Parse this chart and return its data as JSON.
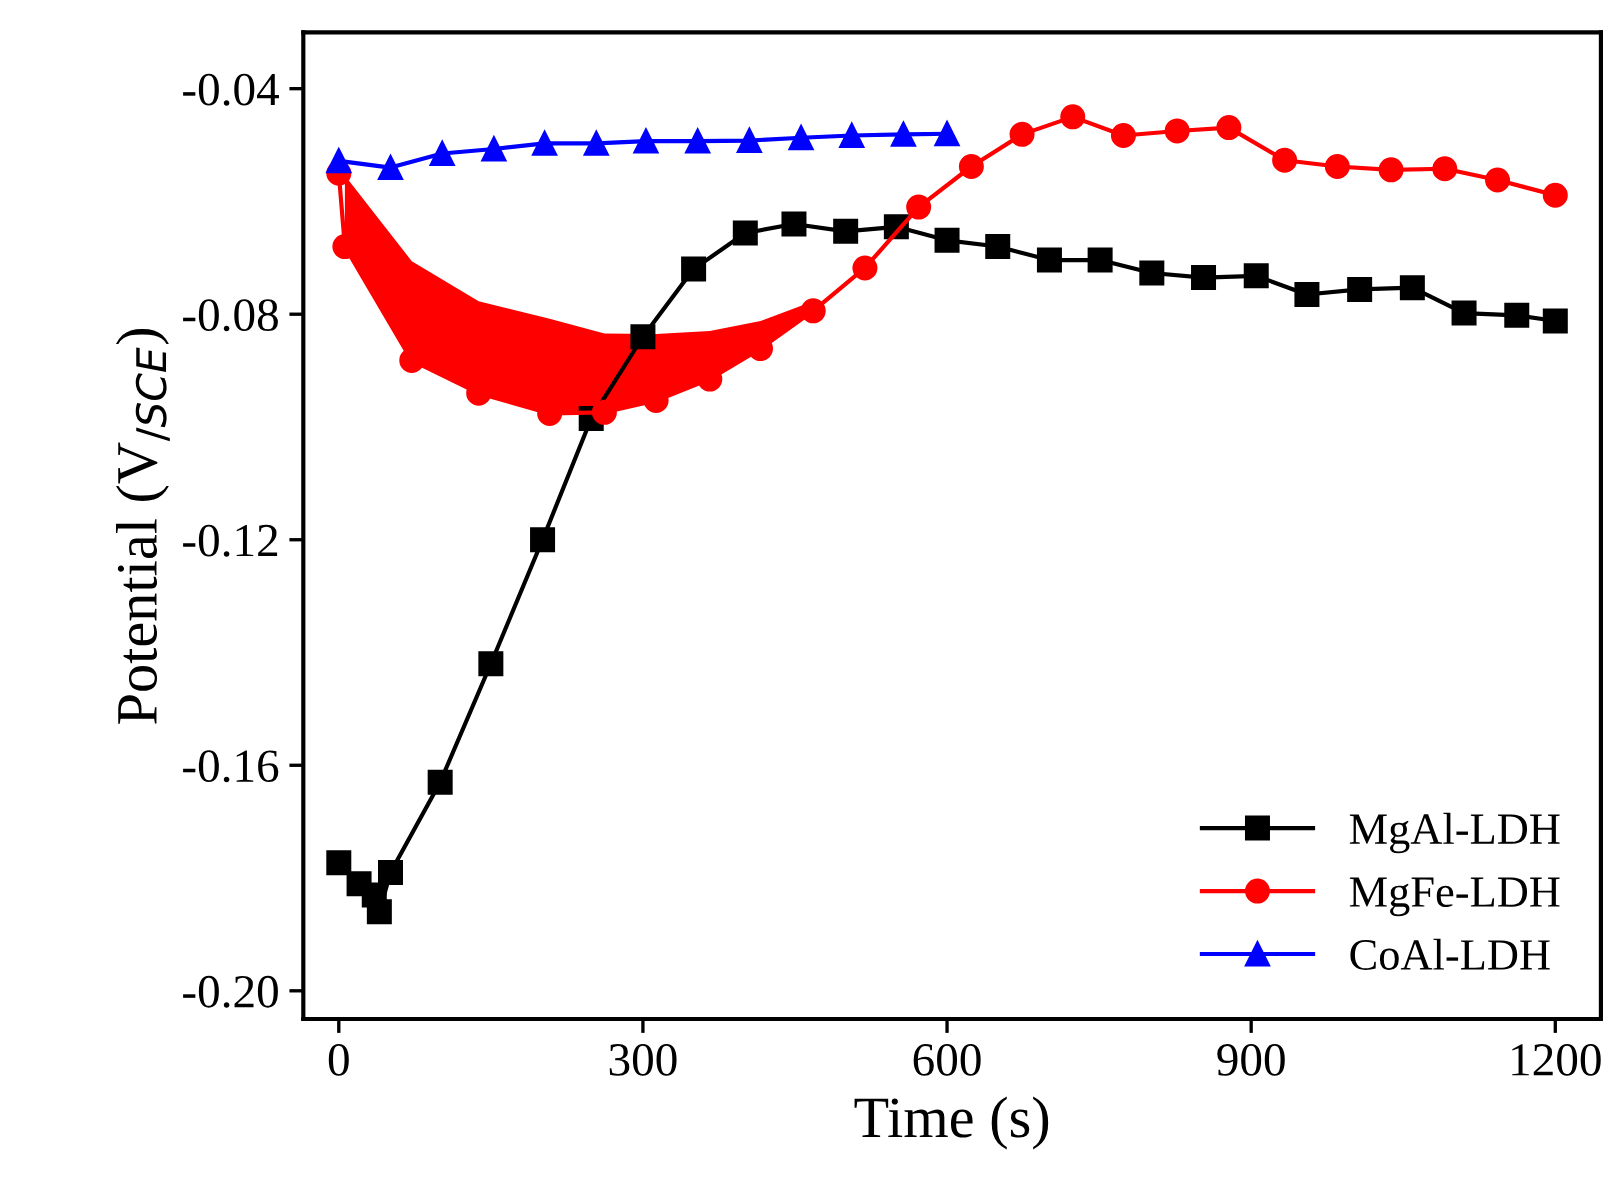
{
  "chart_data": {
    "type": "line",
    "xlabel": "Time (s)",
    "ylabel": "Potential (V$_{/SCE}$)",
    "xlim": [
      -35,
      1245
    ],
    "xticks": [
      0,
      300,
      600,
      900,
      1200
    ],
    "ylim": [
      -0.205,
      -0.03
    ],
    "yticks": [
      {
        "value": -0.2,
        "label": "-0.20"
      },
      {
        "value": -0.16,
        "label": "-0.16"
      },
      {
        "value": -0.12,
        "label": "-0.12"
      },
      {
        "value": -0.08,
        "label": "-0.08"
      },
      {
        "value": -0.04,
        "label": "-0.04"
      }
    ],
    "grid": false,
    "legend": "bottom right",
    "series": [
      {
        "name": "MgAl-LDH",
        "color": "#000000",
        "marker": "square",
        "x": [
          0,
          20,
          35,
          40,
          51,
          100,
          150,
          201,
          249,
          300,
          350,
          401,
          449,
          500,
          550,
          600,
          650,
          701,
          751,
          802,
          853,
          905,
          955,
          1007,
          1059,
          1110,
          1162,
          1200
        ],
        "values": [
          -0.1773,
          -0.181,
          -0.183,
          -0.186,
          -0.179,
          -0.163,
          -0.142,
          -0.12,
          -0.0985,
          -0.084,
          -0.072,
          -0.0656,
          -0.064,
          -0.0653,
          -0.0645,
          -0.0669,
          -0.068,
          -0.0704,
          -0.0704,
          -0.0727,
          -0.0735,
          -0.0732,
          -0.0765,
          -0.0756,
          -0.0753,
          -0.0798,
          -0.0802,
          -0.0812
        ]
      },
      {
        "name": "MgFe-LDH",
        "color": "#ff0000",
        "marker": "circle",
        "x": [
          0,
          6,
          72,
          138,
          208,
          262,
          313,
          366,
          416,
          468,
          519,
          572,
          624,
          674,
          724,
          774,
          827,
          878,
          933,
          985,
          1038,
          1091,
          1143,
          1200
        ],
        "values": [
          -0.055,
          -0.068,
          -0.0882,
          -0.094,
          -0.0976,
          -0.0974,
          -0.0953,
          -0.0915,
          -0.0861,
          -0.0794,
          -0.0718,
          -0.061,
          -0.0538,
          -0.0481,
          -0.045,
          -0.0483,
          -0.0475,
          -0.0469,
          -0.0527,
          -0.0538,
          -0.0544,
          -0.0542,
          -0.0562,
          -0.0589
        ],
        "lower": [
          null,
          -0.068,
          -0.0882,
          -0.094,
          -0.0976,
          -0.0974,
          -0.0953,
          -0.0915,
          -0.0861,
          -0.0794,
          null,
          null,
          null,
          null,
          null,
          null,
          null,
          null,
          null,
          null,
          null,
          null,
          null,
          null
        ],
        "upper": [
          null,
          -0.0554,
          -0.0706,
          -0.0777,
          -0.0808,
          -0.0834,
          -0.0835,
          -0.083,
          -0.0812,
          -0.0777,
          null,
          null,
          null,
          null,
          null,
          null,
          null,
          null,
          null,
          null,
          null,
          null,
          null,
          null
        ]
      },
      {
        "name": "CoAl-LDH",
        "color": "#0000ff",
        "marker": "triangle",
        "x": [
          0,
          51,
          102,
          153,
          203,
          254,
          303,
          354,
          405,
          456,
          506,
          557,
          600
        ],
        "values": [
          -0.0528,
          -0.054,
          -0.0515,
          -0.0507,
          -0.0497,
          -0.0497,
          -0.0493,
          -0.0493,
          -0.0492,
          -0.0487,
          -0.0483,
          -0.0481,
          -0.048
        ]
      }
    ]
  }
}
